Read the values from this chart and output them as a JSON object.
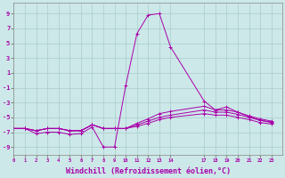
{
  "background_color": "#cce8e8",
  "grid_color": "#aacccc",
  "line_color": "#aa00aa",
  "xlabel": "Windchill (Refroidissement éolien,°C)",
  "xlabel_fontsize": 6,
  "yticks": [
    -9,
    -7,
    -5,
    -3,
    -1,
    1,
    3,
    5,
    7,
    9
  ],
  "xtick_labels": [
    "0",
    "1",
    "2",
    "3",
    "4",
    "5",
    "6",
    "7",
    "8",
    "9",
    "1011121314",
    "",
    "",
    "",
    "",
    "1718192021222 3"
  ],
  "xlim": [
    0,
    24
  ],
  "ylim": [
    -10,
    10.5
  ],
  "series": [
    {
      "x": [
        0,
        1,
        2,
        3,
        4,
        5,
        6,
        7,
        8,
        9,
        10,
        11,
        12,
        13,
        14,
        17,
        18,
        19,
        20,
        21,
        22,
        23
      ],
      "y": [
        -6.5,
        -6.5,
        -7.2,
        -7.0,
        -7.0,
        -7.3,
        -7.2,
        -6.3,
        -9.0,
        -9.0,
        -0.7,
        6.3,
        8.8,
        9.0,
        4.5,
        -2.8,
        -4.0,
        -3.6,
        -4.3,
        -4.9,
        -5.4,
        -5.6
      ]
    },
    {
      "x": [
        0,
        1,
        2,
        3,
        4,
        5,
        6,
        7,
        8,
        9,
        10,
        11,
        12,
        13,
        14,
        17,
        18,
        19,
        20,
        21,
        22,
        23
      ],
      "y": [
        -6.5,
        -6.5,
        -6.8,
        -6.5,
        -6.5,
        -6.8,
        -6.8,
        -6.0,
        -6.5,
        -6.5,
        -6.5,
        -5.8,
        -5.2,
        -4.5,
        -4.2,
        -3.5,
        -4.0,
        -4.0,
        -4.3,
        -4.8,
        -5.2,
        -5.5
      ]
    },
    {
      "x": [
        0,
        1,
        2,
        3,
        4,
        5,
        6,
        7,
        8,
        9,
        10,
        11,
        12,
        13,
        14,
        17,
        18,
        19,
        20,
        21,
        22,
        23
      ],
      "y": [
        -6.5,
        -6.5,
        -6.8,
        -6.5,
        -6.5,
        -6.8,
        -6.8,
        -6.0,
        -6.5,
        -6.5,
        -6.5,
        -6.0,
        -5.5,
        -5.0,
        -4.7,
        -4.0,
        -4.3,
        -4.3,
        -4.6,
        -5.0,
        -5.4,
        -5.7
      ]
    },
    {
      "x": [
        0,
        1,
        2,
        3,
        4,
        5,
        6,
        7,
        8,
        9,
        10,
        11,
        12,
        13,
        14,
        17,
        18,
        19,
        20,
        21,
        22,
        23
      ],
      "y": [
        -6.5,
        -6.5,
        -6.8,
        -6.5,
        -6.5,
        -6.8,
        -6.8,
        -6.0,
        -6.5,
        -6.5,
        -6.5,
        -6.2,
        -5.8,
        -5.3,
        -5.0,
        -4.5,
        -4.7,
        -4.7,
        -5.0,
        -5.3,
        -5.7,
        -5.9
      ]
    }
  ]
}
